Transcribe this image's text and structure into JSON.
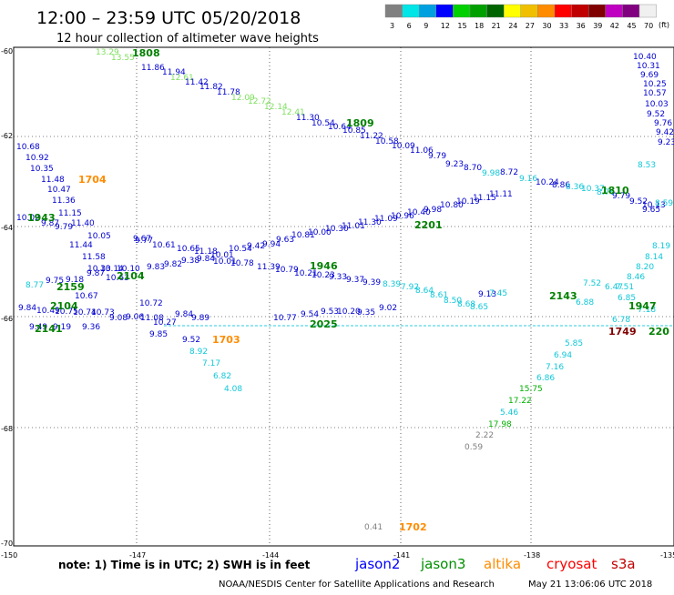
{
  "header": {
    "title": "12:00 – 23:59 UTC 05/20/2018",
    "subtitle": "12 hour collection of altimeter wave heights"
  },
  "legend": {
    "unit": "(ft)",
    "bins": [
      {
        "label": "3",
        "color": "#808080"
      },
      {
        "label": "6",
        "color": "#00e5e5"
      },
      {
        "label": "9",
        "color": "#00a0e0"
      },
      {
        "label": "12",
        "color": "#0000ff"
      },
      {
        "label": "15",
        "color": "#00d000"
      },
      {
        "label": "18",
        "color": "#00a000"
      },
      {
        "label": "21",
        "color": "#006400"
      },
      {
        "label": "24",
        "color": "#ffff00"
      },
      {
        "label": "27",
        "color": "#f0c000"
      },
      {
        "label": "30",
        "color": "#ff8c00"
      },
      {
        "label": "33",
        "color": "#ff0000"
      },
      {
        "label": "36",
        "color": "#c00000"
      },
      {
        "label": "39",
        "color": "#800000"
      },
      {
        "label": "42",
        "color": "#c000c0"
      },
      {
        "label": "45",
        "color": "#800080"
      },
      {
        "label": "70",
        "color": "#f0f0f0"
      }
    ]
  },
  "map": {
    "lat_labels": [
      "-60",
      "-62",
      "-64",
      "-66",
      "-68",
      "-70"
    ],
    "lon_labels": [
      "-150",
      "-147",
      "-144",
      "-141",
      "-138",
      "-135"
    ]
  },
  "colors": {
    "grey": "#808080",
    "cyan": "#10c8d8",
    "blue": "#0000d0",
    "green": "#00b000",
    "dgreen": "#008000",
    "lgreen": "#80e060",
    "orange": "#ff8c00",
    "red": "#d00000",
    "dred": "#800000"
  },
  "tracks": {
    "t1": [
      "13.29",
      "13.55",
      "11.86",
      "11.94",
      "12.61",
      "11.42",
      "11.82",
      "11.78",
      "12.09",
      "12.72",
      "12.14",
      "12.41",
      "11.30",
      "10.54",
      "10.64",
      "10.85",
      "11.22",
      "10.58",
      "10.09",
      "11.06",
      "9.79",
      "9.23",
      "8.70",
      "9.98",
      "8.72",
      "9.16",
      "10.24",
      "8.86",
      "8.36",
      "10.37",
      "8.76",
      "9.79",
      "9.52",
      "10.13",
      "8.59",
      "8.53",
      "9.65"
    ],
    "t2": [
      "10.68",
      "10.92",
      "10.35",
      "11.48",
      "10.47",
      "11.36",
      "11.15",
      "10.02",
      "9.87",
      "9.79",
      "11.40",
      "10.05",
      "11.44",
      "11.58",
      "10.10",
      "10.63",
      "9.67",
      "10.33",
      "8.77",
      "9.75",
      "9.18",
      "9.87",
      "10.14",
      "10.67"
    ],
    "t3": [
      "9.77",
      "10.61",
      "10.65",
      "11.18",
      "10.01",
      "10.54",
      "9.42",
      "9.94",
      "9.63",
      "10.81",
      "10.00",
      "10.30",
      "11.01",
      "11.30",
      "11.09",
      "10.96",
      "10.40",
      "9.98",
      "10.80",
      "10.19",
      "11.15",
      "11.11"
    ],
    "t4": [
      "9.83",
      "9.82",
      "9.38",
      "9.84",
      "10.01",
      "10.78",
      "11.39",
      "10.79",
      "10.21",
      "10.23",
      "9.33",
      "9.37",
      "9.39",
      "8.39",
      "7.92",
      "8.64",
      "8.61",
      "8.50",
      "8.68",
      "8.65",
      "9.13",
      "7.45"
    ],
    "t5": [
      "9.84",
      "10.49",
      "10.75",
      "10.74",
      "10.73",
      "10.77",
      "9.54",
      "9.53",
      "10.20",
      "9.35",
      "9.02",
      "9.08",
      "9.36",
      "9.19",
      "9.49",
      "9.06",
      "10.27",
      "9.84",
      "9.89",
      "10.72",
      "11.08",
      "9.85"
    ],
    "t6": [
      "9.52",
      "8.92",
      "7.17",
      "6.82",
      "4.08"
    ],
    "t7": [
      "5.85",
      "6.94",
      "7.16",
      "6.86",
      "15.75",
      "17.22",
      "5.46",
      "17.98",
      "2.22",
      "0.59"
    ],
    "t8": [
      "10.40",
      "10.31",
      "9.69",
      "10.25",
      "10.57",
      "10.03",
      "9.52",
      "9.76",
      "9.42",
      "9.23",
      "8.19",
      "8.14",
      "8.20",
      "8.46",
      "7.51",
      "7.18",
      "6.85",
      "6.78",
      "6.47",
      "7.52",
      "6.88"
    ]
  },
  "times": [
    {
      "label": "1808",
      "col": "dgreen"
    },
    {
      "label": "1809",
      "col": "dgreen"
    },
    {
      "label": "1704",
      "col": "orange"
    },
    {
      "label": "1810",
      "col": "dgreen"
    },
    {
      "label": "1943",
      "col": "dgreen"
    },
    {
      "label": "2201",
      "col": "dgreen"
    },
    {
      "label": "2159",
      "col": "dgreen"
    },
    {
      "label": "2104",
      "col": "dgreen"
    },
    {
      "label": "1946",
      "col": "dgreen"
    },
    {
      "label": "2143",
      "col": "dgreen"
    },
    {
      "label": "1947",
      "col": "dgreen"
    },
    {
      "label": "2104",
      "col": "dgreen"
    },
    {
      "label": "2141",
      "col": "dgreen"
    },
    {
      "label": "2025",
      "col": "dgreen"
    },
    {
      "label": "1703",
      "col": "orange"
    },
    {
      "label": "1749",
      "col": "dred"
    },
    {
      "label": "220",
      "col": "dgreen"
    },
    {
      "label": "1702",
      "col": "orange"
    }
  ],
  "extra": {
    "low_value": "0.41"
  },
  "note": {
    "text": "note:  1) Time is in UTC;  2) SWH is in feet"
  },
  "satellites": [
    {
      "name": "jason2",
      "color": "#0000ff"
    },
    {
      "name": "jason3",
      "color": "#009000"
    },
    {
      "name": "altika",
      "color": "#ff8c00"
    },
    {
      "name": "cryosat",
      "color": "#ff0000"
    },
    {
      "name": "s3a",
      "color": "#c00000"
    }
  ],
  "footer": {
    "org": "NOAA/NESDIS Center for Satellite Applications and Research",
    "stamp": "May 21 13:06:06 UTC 2018"
  }
}
